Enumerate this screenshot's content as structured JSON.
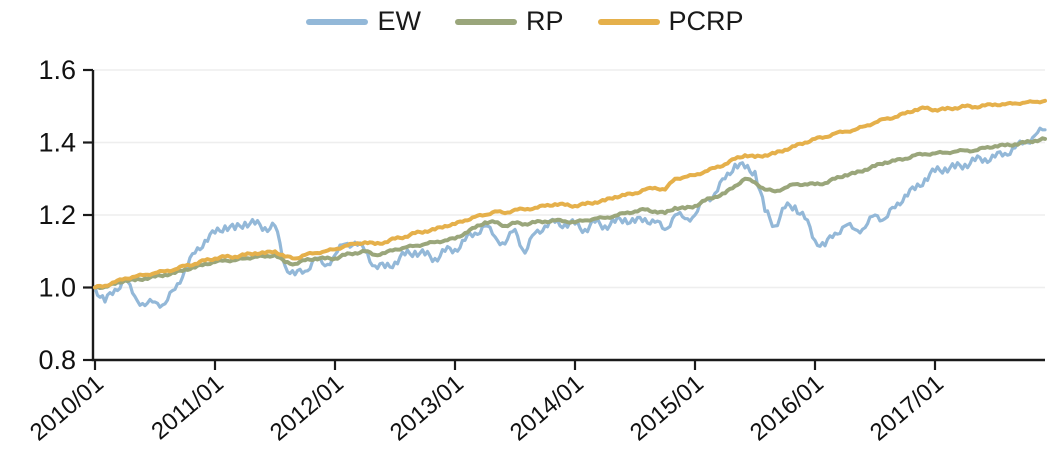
{
  "chart_data": {
    "type": "line",
    "title": "",
    "xlabel": "",
    "ylabel": "",
    "x_axis": {
      "start": "2010/01",
      "end": "2017/12",
      "freq": "monthly",
      "tick_labels": [
        "2010/01",
        "2011/01",
        "2012/01",
        "2013/01",
        "2014/01",
        "2015/01",
        "2016/01",
        "2017/01"
      ],
      "tick_month_indices": [
        0,
        12,
        24,
        36,
        48,
        60,
        72,
        84
      ],
      "label_rotation_deg": -40
    },
    "y_axis": {
      "min": 0.8,
      "max": 1.6,
      "ticks": [
        "0.8",
        "1.0",
        "1.2",
        "1.4",
        "1.6"
      ],
      "tick_values": [
        0.8,
        1.0,
        1.2,
        1.4,
        1.6
      ]
    },
    "grid": "horizontal-light",
    "legend_position": "top-center",
    "series": [
      {
        "name": "EW",
        "color": "#93b8d8",
        "line_width": 3.2,
        "noise": 0.006,
        "values": [
          1.0,
          0.96,
          0.995,
          1.02,
          0.975,
          0.95,
          0.96,
          0.955,
          0.995,
          1.05,
          1.095,
          1.13,
          1.15,
          1.17,
          1.16,
          1.18,
          1.175,
          1.165,
          1.17,
          1.06,
          1.035,
          1.045,
          1.08,
          1.06,
          1.09,
          1.12,
          1.125,
          1.1,
          1.06,
          1.055,
          1.07,
          1.09,
          1.1,
          1.09,
          1.08,
          1.1,
          1.105,
          1.13,
          1.15,
          1.17,
          1.14,
          1.12,
          1.16,
          1.095,
          1.15,
          1.17,
          1.18,
          1.175,
          1.175,
          1.16,
          1.18,
          1.17,
          1.18,
          1.19,
          1.18,
          1.19,
          1.18,
          1.16,
          1.2,
          1.19,
          1.2,
          1.24,
          1.26,
          1.3,
          1.34,
          1.33,
          1.32,
          1.21,
          1.17,
          1.22,
          1.225,
          1.19,
          1.13,
          1.115,
          1.15,
          1.17,
          1.16,
          1.165,
          1.2,
          1.19,
          1.22,
          1.255,
          1.27,
          1.3,
          1.32,
          1.33,
          1.33,
          1.34,
          1.35,
          1.355,
          1.36,
          1.37,
          1.385,
          1.4,
          1.42,
          1.435
        ]
      },
      {
        "name": "RP",
        "color": "#9aa67b",
        "line_width": 4,
        "noise": 0.0015,
        "values": [
          1.0,
          1.002,
          1.01,
          1.02,
          1.02,
          1.025,
          1.03,
          1.035,
          1.04,
          1.05,
          1.055,
          1.065,
          1.07,
          1.075,
          1.075,
          1.08,
          1.085,
          1.085,
          1.09,
          1.07,
          1.065,
          1.075,
          1.08,
          1.08,
          1.08,
          1.09,
          1.095,
          1.1,
          1.09,
          1.095,
          1.105,
          1.11,
          1.115,
          1.12,
          1.125,
          1.13,
          1.135,
          1.15,
          1.165,
          1.18,
          1.18,
          1.17,
          1.178,
          1.175,
          1.18,
          1.182,
          1.185,
          1.183,
          1.18,
          1.185,
          1.19,
          1.192,
          1.198,
          1.205,
          1.21,
          1.215,
          1.21,
          1.205,
          1.22,
          1.218,
          1.225,
          1.24,
          1.25,
          1.26,
          1.28,
          1.3,
          1.29,
          1.27,
          1.265,
          1.275,
          1.285,
          1.285,
          1.285,
          1.288,
          1.3,
          1.31,
          1.315,
          1.325,
          1.335,
          1.345,
          1.35,
          1.355,
          1.365,
          1.368,
          1.37,
          1.372,
          1.375,
          1.378,
          1.378,
          1.385,
          1.39,
          1.392,
          1.395,
          1.4,
          1.405,
          1.41
        ]
      },
      {
        "name": "PCRP",
        "color": "#e5b04b",
        "line_width": 4,
        "noise": 0.0015,
        "values": [
          1.0,
          1.005,
          1.015,
          1.025,
          1.03,
          1.035,
          1.04,
          1.045,
          1.05,
          1.06,
          1.065,
          1.075,
          1.08,
          1.085,
          1.085,
          1.09,
          1.095,
          1.095,
          1.1,
          1.085,
          1.08,
          1.09,
          1.095,
          1.1,
          1.105,
          1.115,
          1.12,
          1.125,
          1.12,
          1.125,
          1.135,
          1.14,
          1.15,
          1.155,
          1.16,
          1.17,
          1.175,
          1.185,
          1.195,
          1.2,
          1.21,
          1.205,
          1.215,
          1.215,
          1.22,
          1.225,
          1.23,
          1.228,
          1.225,
          1.23,
          1.235,
          1.24,
          1.25,
          1.255,
          1.26,
          1.27,
          1.275,
          1.27,
          1.3,
          1.305,
          1.31,
          1.32,
          1.33,
          1.34,
          1.355,
          1.365,
          1.36,
          1.365,
          1.37,
          1.38,
          1.39,
          1.4,
          1.41,
          1.415,
          1.425,
          1.43,
          1.435,
          1.445,
          1.455,
          1.465,
          1.47,
          1.48,
          1.49,
          1.495,
          1.49,
          1.492,
          1.495,
          1.5,
          1.498,
          1.502,
          1.505,
          1.505,
          1.508,
          1.51,
          1.512,
          1.515
        ]
      }
    ]
  },
  "style": {
    "axis_color": "#1a1a1a",
    "grid_color": "#eeeeee",
    "tick_label_color": "#111111",
    "background": "#ffffff"
  }
}
